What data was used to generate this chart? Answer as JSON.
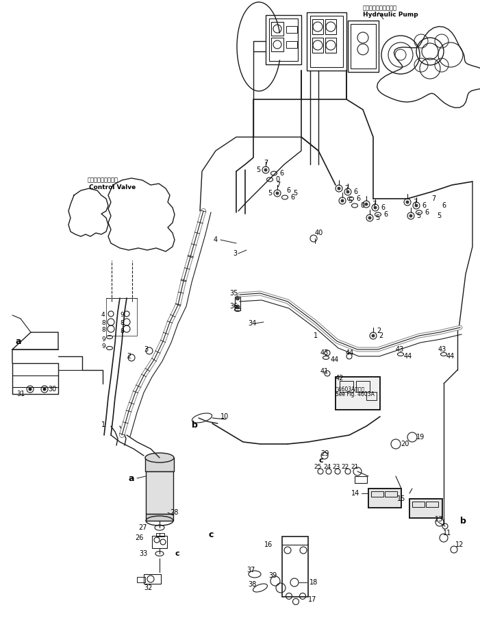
{
  "figsize": [
    7.01,
    9.18
  ],
  "dpi": 100,
  "background_color": "#ffffff",
  "line_color": "#1a1a1a",
  "text_color": "#000000",
  "labels": {
    "hydraulic_pump_jp": "ハイドロリックポンプ",
    "hydraulic_pump_en": "Hydraulic Pump",
    "control_valve_jp": "コントロールバルブ",
    "control_valve_en": "Control Valve",
    "see_fig_jp": "第4603A図参照",
    "see_fig_en": "See Fig. 4603A"
  }
}
